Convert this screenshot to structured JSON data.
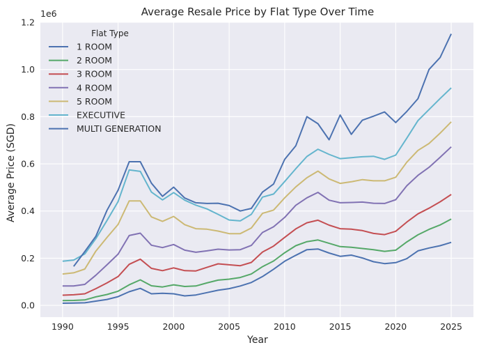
{
  "chart_data": {
    "type": "line",
    "title": "Average Resale Price by Flat Type Over Time",
    "xlabel": "Year",
    "ylabel": "Average Price (SGD)",
    "y_offset_label": "1e6",
    "xlim": [
      1988,
      2027
    ],
    "ylim": [
      -0.05,
      1.2
    ],
    "xticks": [
      1990,
      1995,
      2000,
      2005,
      2010,
      2015,
      2020,
      2025
    ],
    "yticks": [
      0.0,
      0.2,
      0.4,
      0.6,
      0.8,
      1.0,
      1.2
    ],
    "ytick_labels": [
      "0.0",
      "0.2",
      "0.4",
      "0.6",
      "0.8",
      "1.0",
      "1.2"
    ],
    "grid": true,
    "legend": {
      "title": "Flat Type",
      "placement": "top-left"
    },
    "series": [
      {
        "name": "1 ROOM",
        "color": "#4c72b0",
        "x": [
          1990,
          1991,
          1992,
          1993,
          1994,
          1995,
          1996,
          1997,
          1998,
          1999,
          2000,
          2001,
          2002,
          2003,
          2004,
          2005,
          2006,
          2007,
          2008,
          2009,
          2010,
          2011,
          2012,
          2013,
          2014,
          2015,
          2016,
          2017,
          2018,
          2019,
          2020,
          2021,
          2022,
          2023,
          2024,
          2025
        ],
        "values": [
          0.009,
          0.01,
          0.011,
          0.018,
          0.025,
          0.037,
          0.058,
          0.072,
          0.049,
          0.051,
          0.049,
          0.04,
          0.044,
          0.054,
          0.064,
          0.071,
          0.082,
          0.097,
          0.122,
          0.153,
          0.187,
          0.212,
          0.236,
          0.239,
          0.222,
          0.208,
          0.213,
          0.201,
          0.185,
          0.177,
          0.181,
          0.198,
          0.231,
          0.243,
          0.253,
          0.267
        ]
      },
      {
        "name": "2 ROOM",
        "color": "#55a868",
        "x": [
          1990,
          1991,
          1992,
          1993,
          1994,
          1995,
          1996,
          1997,
          1998,
          1999,
          2000,
          2001,
          2002,
          2003,
          2004,
          2005,
          2006,
          2007,
          2008,
          2009,
          2010,
          2011,
          2012,
          2013,
          2014,
          2015,
          2016,
          2017,
          2018,
          2019,
          2020,
          2021,
          2022,
          2023,
          2024,
          2025
        ],
        "values": [
          0.02,
          0.021,
          0.023,
          0.036,
          0.046,
          0.06,
          0.087,
          0.108,
          0.083,
          0.078,
          0.087,
          0.08,
          0.082,
          0.095,
          0.107,
          0.111,
          0.118,
          0.133,
          0.164,
          0.188,
          0.223,
          0.253,
          0.27,
          0.277,
          0.263,
          0.249,
          0.246,
          0.241,
          0.236,
          0.229,
          0.234,
          0.269,
          0.299,
          0.322,
          0.341,
          0.366
        ]
      },
      {
        "name": "3 ROOM",
        "color": "#c44e52",
        "x": [
          1990,
          1991,
          1992,
          1993,
          1994,
          1995,
          1996,
          1997,
          1998,
          1999,
          2000,
          2001,
          2002,
          2003,
          2004,
          2005,
          2006,
          2007,
          2008,
          2009,
          2010,
          2011,
          2012,
          2013,
          2014,
          2015,
          2016,
          2017,
          2018,
          2019,
          2020,
          2021,
          2022,
          2023,
          2024,
          2025
        ],
        "values": [
          0.043,
          0.045,
          0.049,
          0.071,
          0.095,
          0.122,
          0.174,
          0.196,
          0.157,
          0.147,
          0.159,
          0.147,
          0.146,
          0.161,
          0.176,
          0.172,
          0.168,
          0.182,
          0.226,
          0.251,
          0.288,
          0.324,
          0.35,
          0.361,
          0.34,
          0.325,
          0.323,
          0.317,
          0.305,
          0.3,
          0.314,
          0.353,
          0.388,
          0.412,
          0.439,
          0.47
        ]
      },
      {
        "name": "4 ROOM",
        "color": "#8172b3",
        "x": [
          1990,
          1991,
          1992,
          1993,
          1994,
          1995,
          1996,
          1997,
          1998,
          1999,
          2000,
          2001,
          2002,
          2003,
          2004,
          2005,
          2006,
          2007,
          2008,
          2009,
          2010,
          2011,
          2012,
          2013,
          2014,
          2015,
          2016,
          2017,
          2018,
          2019,
          2020,
          2021,
          2022,
          2023,
          2024,
          2025
        ],
        "values": [
          0.082,
          0.082,
          0.089,
          0.128,
          0.172,
          0.217,
          0.296,
          0.306,
          0.255,
          0.245,
          0.258,
          0.234,
          0.225,
          0.231,
          0.238,
          0.235,
          0.236,
          0.254,
          0.309,
          0.333,
          0.373,
          0.424,
          0.456,
          0.479,
          0.446,
          0.435,
          0.436,
          0.438,
          0.433,
          0.432,
          0.448,
          0.507,
          0.551,
          0.585,
          0.628,
          0.672
        ]
      },
      {
        "name": "5 ROOM",
        "color": "#ccb974",
        "x": [
          1990,
          1991,
          1992,
          1993,
          1994,
          1995,
          1996,
          1997,
          1998,
          1999,
          2000,
          2001,
          2002,
          2003,
          2004,
          2005,
          2006,
          2007,
          2008,
          2009,
          2010,
          2011,
          2012,
          2013,
          2014,
          2015,
          2016,
          2017,
          2018,
          2019,
          2020,
          2021,
          2022,
          2023,
          2024,
          2025
        ],
        "values": [
          0.133,
          0.138,
          0.154,
          0.23,
          0.288,
          0.343,
          0.443,
          0.443,
          0.375,
          0.356,
          0.377,
          0.342,
          0.325,
          0.323,
          0.315,
          0.304,
          0.304,
          0.328,
          0.39,
          0.404,
          0.456,
          0.502,
          0.541,
          0.569,
          0.536,
          0.517,
          0.524,
          0.533,
          0.528,
          0.528,
          0.543,
          0.607,
          0.657,
          0.686,
          0.73,
          0.778
        ]
      },
      {
        "name": "EXECUTIVE",
        "color": "#64b5cd",
        "x": [
          1990,
          1991,
          1992,
          1993,
          1994,
          1995,
          1996,
          1997,
          1998,
          1999,
          2000,
          2001,
          2002,
          2003,
          2004,
          2005,
          2006,
          2007,
          2008,
          2009,
          2010,
          2011,
          2012,
          2013,
          2014,
          2015,
          2016,
          2017,
          2018,
          2019,
          2020,
          2021,
          2022,
          2023,
          2024,
          2025
        ],
        "values": [
          0.187,
          0.192,
          0.218,
          0.283,
          0.36,
          0.44,
          0.574,
          0.568,
          0.48,
          0.447,
          0.478,
          0.446,
          0.425,
          0.409,
          0.386,
          0.362,
          0.358,
          0.386,
          0.459,
          0.472,
          0.525,
          0.579,
          0.631,
          0.662,
          0.64,
          0.622,
          0.626,
          0.63,
          0.632,
          0.619,
          0.637,
          0.709,
          0.783,
          0.83,
          0.877,
          0.922
        ]
      },
      {
        "name": "MULTI GENERATION",
        "color": "#4c72b0",
        "x": [
          1991,
          1992,
          1993,
          1994,
          1995,
          1996,
          1997,
          1998,
          1999,
          2000,
          2001,
          2002,
          2003,
          2004,
          2005,
          2006,
          2007,
          2008,
          2009,
          2010,
          2011,
          2012,
          2013,
          2014,
          2015,
          2016,
          2017,
          2018,
          2019,
          2020,
          2021,
          2022,
          2023,
          2024,
          2025
        ],
        "values": [
          0.165,
          0.228,
          0.293,
          0.403,
          0.488,
          0.609,
          0.609,
          0.518,
          0.462,
          0.501,
          0.455,
          0.435,
          0.432,
          0.433,
          0.423,
          0.4,
          0.411,
          0.48,
          0.514,
          0.619,
          0.676,
          0.8,
          0.77,
          0.702,
          0.807,
          0.725,
          0.785,
          0.802,
          0.82,
          0.775,
          0.822,
          0.876,
          1.0,
          1.051,
          1.151
        ]
      }
    ]
  }
}
